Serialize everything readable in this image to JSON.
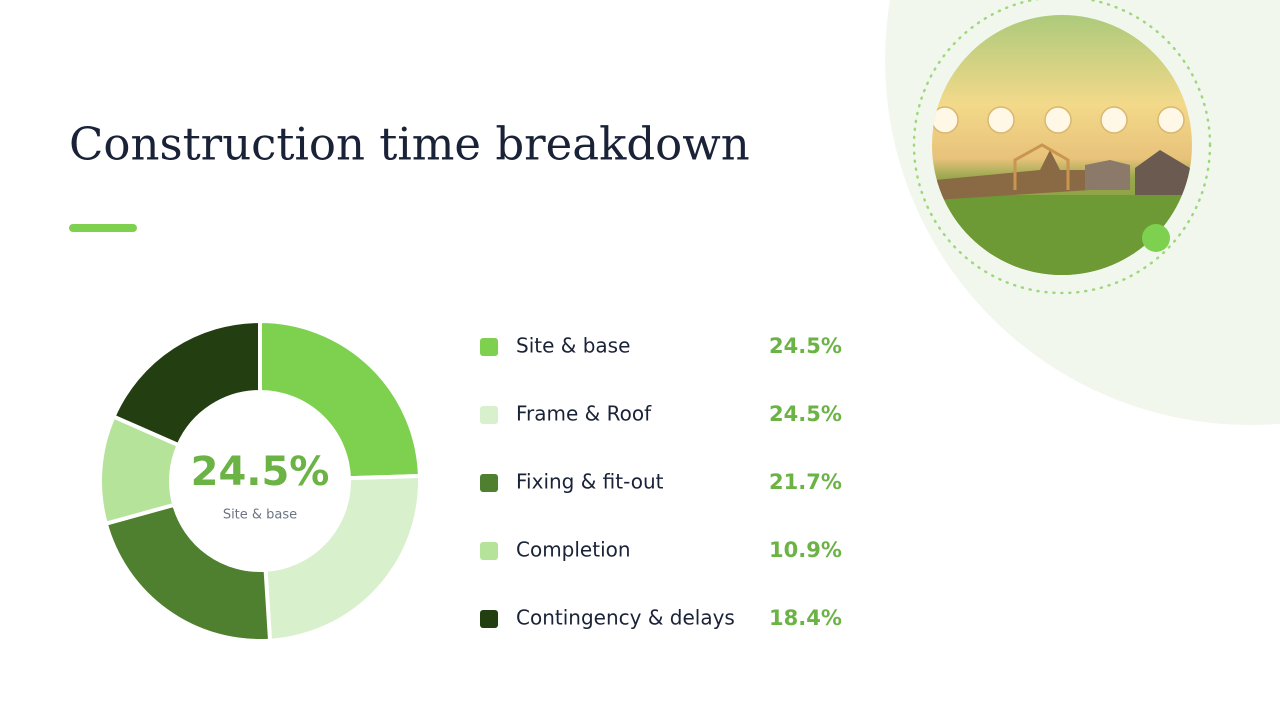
{
  "chart_data": {
    "type": "pie",
    "title": "Construction time breakdown",
    "categories": [
      "Site & base",
      "Frame & Roof",
      "Fixing & fit-out",
      "Completion",
      "Contingency & delays"
    ],
    "values": [
      24.5,
      24.5,
      21.7,
      10.9,
      18.4
    ],
    "value_labels": [
      "24.5%",
      "24.5%",
      "21.7%",
      "10.9%",
      "18.4%"
    ],
    "colors": [
      "#7ed04f",
      "#d9f0cc",
      "#4e8030",
      "#b5e39a",
      "#233f12"
    ]
  }
}
